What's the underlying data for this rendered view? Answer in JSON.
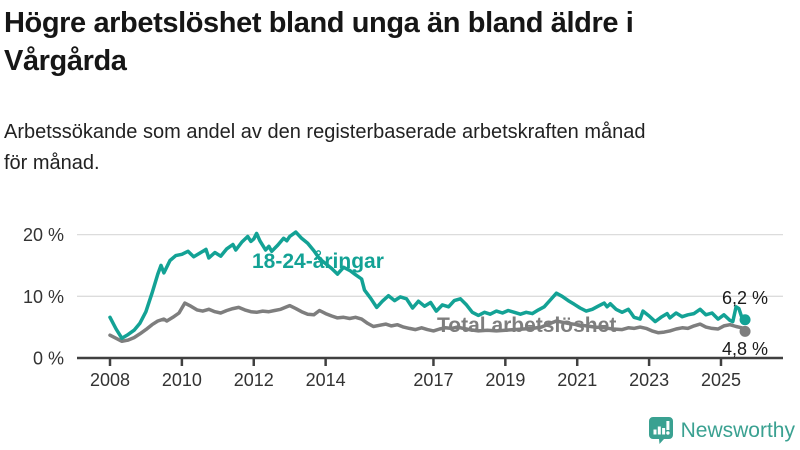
{
  "header": {
    "title_line1": "Högre arbetslöshet bland unga än bland äldre i",
    "title_line2": "Vårgårda",
    "subtitle_line1": "Arbetssökande som andel av den registerbaserade arbetskraften månad",
    "subtitle_line2": "för månad."
  },
  "colors": {
    "youth": "#13a295",
    "total": "#7e7e7e",
    "grid": "#dcdcdc",
    "axis": "#404040",
    "tick_text": "#333333",
    "brand": "#3aa191"
  },
  "chart_data": {
    "type": "line",
    "title": "Högre arbetslöshet bland unga än bland äldre i Vårgårda",
    "subtitle": "Arbetssökande som andel av den registerbaserade arbetskraften månad för månad.",
    "unit": "%",
    "grid": true,
    "x_range": [
      2007.9,
      2025.9
    ],
    "ylim": [
      0,
      21
    ],
    "x_ticks": [
      2008,
      2010,
      2012,
      2014,
      2017,
      2019,
      2021,
      2023,
      2025
    ],
    "y_ticks": [
      {
        "value": 0,
        "label": "0 %"
      },
      {
        "value": 10,
        "label": "10 %"
      },
      {
        "value": 20,
        "label": "20 %"
      }
    ],
    "series": [
      {
        "name": "18-24-åringar",
        "label_text": "18-24-åringar",
        "end_label": "6,2 %",
        "end_value": 6.2,
        "color": "#13a295",
        "points": [
          [
            2008.0,
            6.6
          ],
          [
            2008.17,
            4.7
          ],
          [
            2008.33,
            3.2
          ],
          [
            2008.5,
            3.8
          ],
          [
            2008.67,
            4.5
          ],
          [
            2008.83,
            5.6
          ],
          [
            2009.0,
            7.5
          ],
          [
            2009.17,
            10.5
          ],
          [
            2009.33,
            13.6
          ],
          [
            2009.42,
            15.0
          ],
          [
            2009.5,
            13.8
          ],
          [
            2009.67,
            15.8
          ],
          [
            2009.83,
            16.6
          ],
          [
            2010.0,
            16.8
          ],
          [
            2010.17,
            17.3
          ],
          [
            2010.33,
            16.4
          ],
          [
            2010.5,
            17.0
          ],
          [
            2010.67,
            17.6
          ],
          [
            2010.75,
            16.2
          ],
          [
            2010.92,
            17.1
          ],
          [
            2011.08,
            16.5
          ],
          [
            2011.25,
            17.7
          ],
          [
            2011.42,
            18.4
          ],
          [
            2011.5,
            17.5
          ],
          [
            2011.67,
            18.8
          ],
          [
            2011.83,
            19.7
          ],
          [
            2011.92,
            18.9
          ],
          [
            2012.0,
            19.3
          ],
          [
            2012.08,
            20.2
          ],
          [
            2012.17,
            19.0
          ],
          [
            2012.33,
            17.5
          ],
          [
            2012.42,
            18.1
          ],
          [
            2012.5,
            17.3
          ],
          [
            2012.67,
            18.3
          ],
          [
            2012.83,
            19.4
          ],
          [
            2012.92,
            19.0
          ],
          [
            2013.0,
            19.7
          ],
          [
            2013.17,
            20.4
          ],
          [
            2013.33,
            19.4
          ],
          [
            2013.5,
            18.6
          ],
          [
            2013.67,
            17.4
          ],
          [
            2013.83,
            16.1
          ],
          [
            2014.0,
            15.3
          ],
          [
            2014.17,
            14.5
          ],
          [
            2014.33,
            13.6
          ],
          [
            2014.5,
            14.7
          ],
          [
            2014.67,
            14.2
          ],
          [
            2014.83,
            13.5
          ],
          [
            2015.0,
            12.8
          ],
          [
            2015.08,
            11.0
          ],
          [
            2015.25,
            9.7
          ],
          [
            2015.42,
            8.2
          ],
          [
            2015.58,
            9.2
          ],
          [
            2015.75,
            10.1
          ],
          [
            2015.92,
            9.3
          ],
          [
            2016.08,
            9.9
          ],
          [
            2016.25,
            9.6
          ],
          [
            2016.42,
            8.1
          ],
          [
            2016.58,
            9.2
          ],
          [
            2016.75,
            8.4
          ],
          [
            2016.92,
            9.0
          ],
          [
            2017.08,
            7.6
          ],
          [
            2017.25,
            8.6
          ],
          [
            2017.42,
            8.3
          ],
          [
            2017.58,
            9.3
          ],
          [
            2017.75,
            9.6
          ],
          [
            2017.92,
            8.6
          ],
          [
            2018.08,
            7.4
          ],
          [
            2018.25,
            6.9
          ],
          [
            2018.42,
            7.4
          ],
          [
            2018.58,
            7.1
          ],
          [
            2018.75,
            7.6
          ],
          [
            2018.92,
            7.3
          ],
          [
            2019.08,
            7.7
          ],
          [
            2019.25,
            7.4
          ],
          [
            2019.42,
            7.1
          ],
          [
            2019.58,
            7.4
          ],
          [
            2019.75,
            7.2
          ],
          [
            2019.92,
            7.8
          ],
          [
            2020.08,
            8.3
          ],
          [
            2020.25,
            9.4
          ],
          [
            2020.42,
            10.5
          ],
          [
            2020.58,
            10.0
          ],
          [
            2020.75,
            9.3
          ],
          [
            2020.92,
            8.7
          ],
          [
            2021.08,
            8.1
          ],
          [
            2021.25,
            7.6
          ],
          [
            2021.42,
            7.9
          ],
          [
            2021.58,
            8.4
          ],
          [
            2021.75,
            8.9
          ],
          [
            2021.83,
            8.3
          ],
          [
            2021.92,
            8.8
          ],
          [
            2022.08,
            7.9
          ],
          [
            2022.25,
            7.4
          ],
          [
            2022.42,
            7.9
          ],
          [
            2022.5,
            7.3
          ],
          [
            2022.58,
            6.6
          ],
          [
            2022.75,
            6.3
          ],
          [
            2022.83,
            7.6
          ],
          [
            2023.0,
            6.8
          ],
          [
            2023.17,
            5.9
          ],
          [
            2023.33,
            6.6
          ],
          [
            2023.5,
            7.2
          ],
          [
            2023.58,
            6.5
          ],
          [
            2023.75,
            7.3
          ],
          [
            2023.92,
            6.7
          ],
          [
            2024.08,
            7.0
          ],
          [
            2024.25,
            7.2
          ],
          [
            2024.42,
            7.9
          ],
          [
            2024.58,
            7.0
          ],
          [
            2024.75,
            7.3
          ],
          [
            2024.92,
            6.3
          ],
          [
            2025.08,
            7.0
          ],
          [
            2025.25,
            6.1
          ],
          [
            2025.33,
            5.9
          ],
          [
            2025.42,
            8.3
          ],
          [
            2025.5,
            8.0
          ],
          [
            2025.58,
            6.6
          ],
          [
            2025.67,
            6.2
          ]
        ]
      },
      {
        "name": "Total arbetslöshet",
        "label_text": "Total arbetslöshet",
        "end_label": "4,8 %",
        "end_value": 4.8,
        "color": "#7e7e7e",
        "points": [
          [
            2008.0,
            3.7
          ],
          [
            2008.17,
            3.2
          ],
          [
            2008.33,
            2.7
          ],
          [
            2008.5,
            2.9
          ],
          [
            2008.67,
            3.3
          ],
          [
            2008.83,
            3.9
          ],
          [
            2009.0,
            4.6
          ],
          [
            2009.17,
            5.4
          ],
          [
            2009.33,
            6.0
          ],
          [
            2009.5,
            6.3
          ],
          [
            2009.58,
            6.0
          ],
          [
            2009.75,
            6.6
          ],
          [
            2009.92,
            7.3
          ],
          [
            2010.08,
            8.9
          ],
          [
            2010.25,
            8.4
          ],
          [
            2010.42,
            7.8
          ],
          [
            2010.58,
            7.6
          ],
          [
            2010.75,
            7.9
          ],
          [
            2010.92,
            7.5
          ],
          [
            2011.08,
            7.3
          ],
          [
            2011.25,
            7.7
          ],
          [
            2011.42,
            8.0
          ],
          [
            2011.58,
            8.2
          ],
          [
            2011.75,
            7.8
          ],
          [
            2011.92,
            7.5
          ],
          [
            2012.08,
            7.4
          ],
          [
            2012.25,
            7.6
          ],
          [
            2012.42,
            7.5
          ],
          [
            2012.58,
            7.7
          ],
          [
            2012.75,
            7.9
          ],
          [
            2012.92,
            8.3
          ],
          [
            2013.0,
            8.5
          ],
          [
            2013.17,
            8.0
          ],
          [
            2013.33,
            7.5
          ],
          [
            2013.5,
            7.1
          ],
          [
            2013.67,
            7.0
          ],
          [
            2013.83,
            7.7
          ],
          [
            2014.0,
            7.2
          ],
          [
            2014.17,
            6.8
          ],
          [
            2014.33,
            6.5
          ],
          [
            2014.5,
            6.6
          ],
          [
            2014.67,
            6.4
          ],
          [
            2014.83,
            6.6
          ],
          [
            2015.0,
            6.3
          ],
          [
            2015.17,
            5.6
          ],
          [
            2015.33,
            5.1
          ],
          [
            2015.5,
            5.3
          ],
          [
            2015.67,
            5.5
          ],
          [
            2015.83,
            5.2
          ],
          [
            2016.0,
            5.4
          ],
          [
            2016.17,
            5.0
          ],
          [
            2016.33,
            4.8
          ],
          [
            2016.5,
            4.6
          ],
          [
            2016.67,
            4.9
          ],
          [
            2016.83,
            4.6
          ],
          [
            2017.0,
            4.4
          ],
          [
            2017.17,
            4.7
          ],
          [
            2017.33,
            4.9
          ],
          [
            2017.5,
            4.8
          ],
          [
            2017.67,
            5.0
          ],
          [
            2017.83,
            4.8
          ],
          [
            2018.0,
            4.6
          ],
          [
            2018.25,
            4.4
          ],
          [
            2018.5,
            4.5
          ],
          [
            2018.75,
            4.4
          ],
          [
            2019.0,
            4.5
          ],
          [
            2019.25,
            4.6
          ],
          [
            2019.5,
            4.7
          ],
          [
            2019.75,
            4.8
          ],
          [
            2020.0,
            5.0
          ],
          [
            2020.25,
            5.6
          ],
          [
            2020.42,
            6.0
          ],
          [
            2020.58,
            5.8
          ],
          [
            2020.75,
            5.6
          ],
          [
            2021.0,
            5.4
          ],
          [
            2021.25,
            5.2
          ],
          [
            2021.5,
            5.0
          ],
          [
            2021.75,
            4.9
          ],
          [
            2022.0,
            4.7
          ],
          [
            2022.25,
            4.6
          ],
          [
            2022.42,
            4.9
          ],
          [
            2022.58,
            4.8
          ],
          [
            2022.75,
            5.0
          ],
          [
            2022.92,
            4.8
          ],
          [
            2023.08,
            4.4
          ],
          [
            2023.25,
            4.1
          ],
          [
            2023.42,
            4.2
          ],
          [
            2023.58,
            4.4
          ],
          [
            2023.75,
            4.7
          ],
          [
            2023.92,
            4.9
          ],
          [
            2024.08,
            4.8
          ],
          [
            2024.25,
            5.2
          ],
          [
            2024.42,
            5.5
          ],
          [
            2024.58,
            5.0
          ],
          [
            2024.75,
            4.8
          ],
          [
            2024.92,
            4.7
          ],
          [
            2025.08,
            5.2
          ],
          [
            2025.25,
            5.4
          ],
          [
            2025.42,
            5.1
          ],
          [
            2025.58,
            4.9
          ],
          [
            2025.67,
            4.8
          ]
        ]
      }
    ],
    "legend_position": "inline-labels"
  },
  "footer": {
    "brand": "Newsworthy"
  }
}
